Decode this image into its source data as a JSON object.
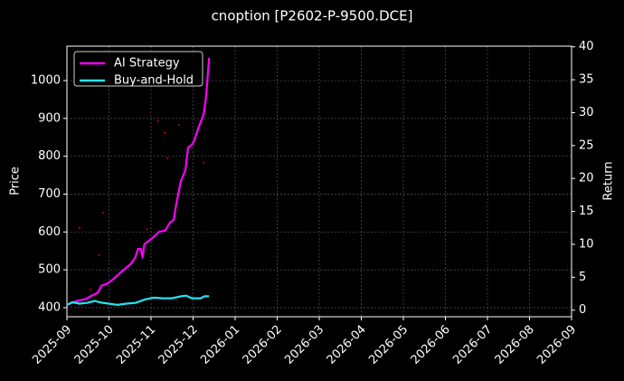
{
  "chart_data": {
    "type": "line",
    "title": "cnoption [P2602-P-9500.DCE]",
    "ylabel": "Price",
    "y2label": "Return",
    "xlim": [
      0,
      12
    ],
    "xticks": [
      {
        "value": 0,
        "label": "2025-09"
      },
      {
        "value": 1,
        "label": "2025-10"
      },
      {
        "value": 2,
        "label": "2025-11"
      },
      {
        "value": 3,
        "label": "2025-12"
      },
      {
        "value": 4,
        "label": "2026-01"
      },
      {
        "value": 5,
        "label": "2026-02"
      },
      {
        "value": 6,
        "label": "2026-03"
      },
      {
        "value": 7,
        "label": "2026-04"
      },
      {
        "value": 8,
        "label": "2026-05"
      },
      {
        "value": 9,
        "label": "2026-06"
      },
      {
        "value": 10,
        "label": "2026-07"
      },
      {
        "value": 11,
        "label": "2026-08"
      },
      {
        "value": 12,
        "label": "2026-09"
      }
    ],
    "ylim": [
      376,
      1091
    ],
    "yticks": [
      400,
      500,
      600,
      700,
      800,
      900,
      1000
    ],
    "y2lim": [
      -1,
      40.1
    ],
    "y2ticks": [
      0,
      5,
      10,
      15,
      20,
      25,
      30,
      35,
      40
    ],
    "grid": true,
    "legend": "upper left",
    "price_points": {
      "color": "#d0002a",
      "x": [
        0.3,
        0.86,
        0.56,
        2.17,
        2.32,
        2.39,
        2.67,
        3.25,
        1.91,
        0.77
      ],
      "values": [
        610,
        651,
        448,
        893,
        862,
        795,
        883,
        783,
        608,
        539
      ]
    },
    "series": [
      {
        "name": "AI Strategy",
        "color": "#ff00ff",
        "axis": "y2",
        "x": [
          0,
          0.24,
          0.45,
          0.56,
          0.73,
          0.82,
          0.95,
          1.1,
          1.31,
          1.53,
          1.63,
          1.69,
          1.76,
          1.8,
          1.84,
          2.06,
          2.19,
          2.34,
          2.45,
          2.54,
          2.6,
          2.71,
          2.82,
          2.88,
          2.97,
          3.03,
          3.14,
          3.25,
          3.31,
          3.38
        ],
        "values": [
          0.8,
          1.4,
          1.7,
          2.1,
          2.6,
          3.7,
          4.0,
          4.7,
          5.9,
          7.1,
          8.1,
          9.3,
          9.3,
          8.0,
          10.0,
          11.1,
          11.9,
          12.1,
          13.3,
          13.7,
          16.1,
          19.6,
          21.3,
          24.7,
          25.1,
          25.8,
          27.9,
          29.7,
          32.4,
          38.3
        ]
      },
      {
        "name": "Buy-and-Hold",
        "color": "#22e5f0",
        "axis": "y2",
        "x": [
          0,
          0.13,
          0.3,
          0.47,
          0.67,
          0.77,
          0.99,
          1.2,
          1.42,
          1.63,
          1.84,
          2.06,
          2.28,
          2.49,
          2.71,
          2.84,
          2.97,
          3.18,
          3.27,
          3.38
        ],
        "values": [
          0.8,
          1.2,
          1.0,
          1.1,
          1.4,
          1.2,
          1.0,
          0.8,
          1.0,
          1.1,
          1.6,
          1.9,
          1.8,
          1.8,
          2.1,
          2.2,
          1.8,
          1.8,
          2.1,
          2.1
        ]
      }
    ]
  }
}
